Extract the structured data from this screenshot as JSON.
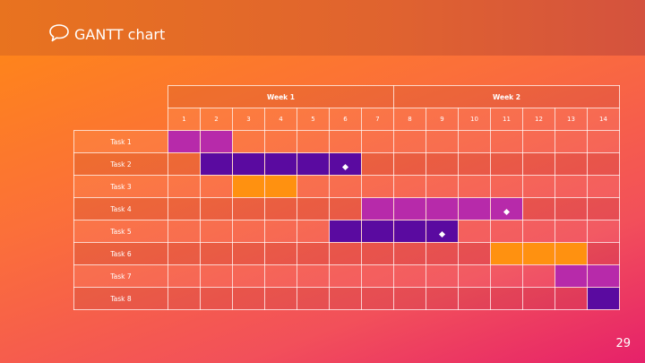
{
  "slide": {
    "title": "GANTT chart",
    "page_number": "29",
    "icon": "speech-bubble-icon"
  },
  "colors": {
    "magenta": "#b72aaa",
    "purple": "#5a0aa0",
    "orange": "#ff9110"
  },
  "weeks": [
    {
      "label": "Week 1",
      "span": 7
    },
    {
      "label": "Week 2",
      "span": 7
    }
  ],
  "days": [
    "1",
    "2",
    "3",
    "4",
    "5",
    "6",
    "7",
    "8",
    "9",
    "10",
    "11",
    "12",
    "13",
    "14"
  ],
  "tasks": [
    {
      "name": "Task 1",
      "start": 1,
      "end": 2,
      "color": "magenta",
      "milestone_day": null
    },
    {
      "name": "Task 2",
      "start": 2,
      "end": 6,
      "color": "purple",
      "milestone_day": 6
    },
    {
      "name": "Task 3",
      "start": 3,
      "end": 4,
      "color": "orange",
      "milestone_day": null
    },
    {
      "name": "Task 4",
      "start": 7,
      "end": 11,
      "color": "magenta",
      "milestone_day": 11
    },
    {
      "name": "Task 5",
      "start": 6,
      "end": 9,
      "color": "purple",
      "milestone_day": 9
    },
    {
      "name": "Task 6",
      "start": 11,
      "end": 13,
      "color": "orange",
      "milestone_day": null
    },
    {
      "name": "Task 7",
      "start": 13,
      "end": 14,
      "color": "magenta",
      "milestone_day": null
    },
    {
      "name": "Task 8",
      "start": 14,
      "end": 14,
      "color": "purple",
      "milestone_day": null
    }
  ]
}
